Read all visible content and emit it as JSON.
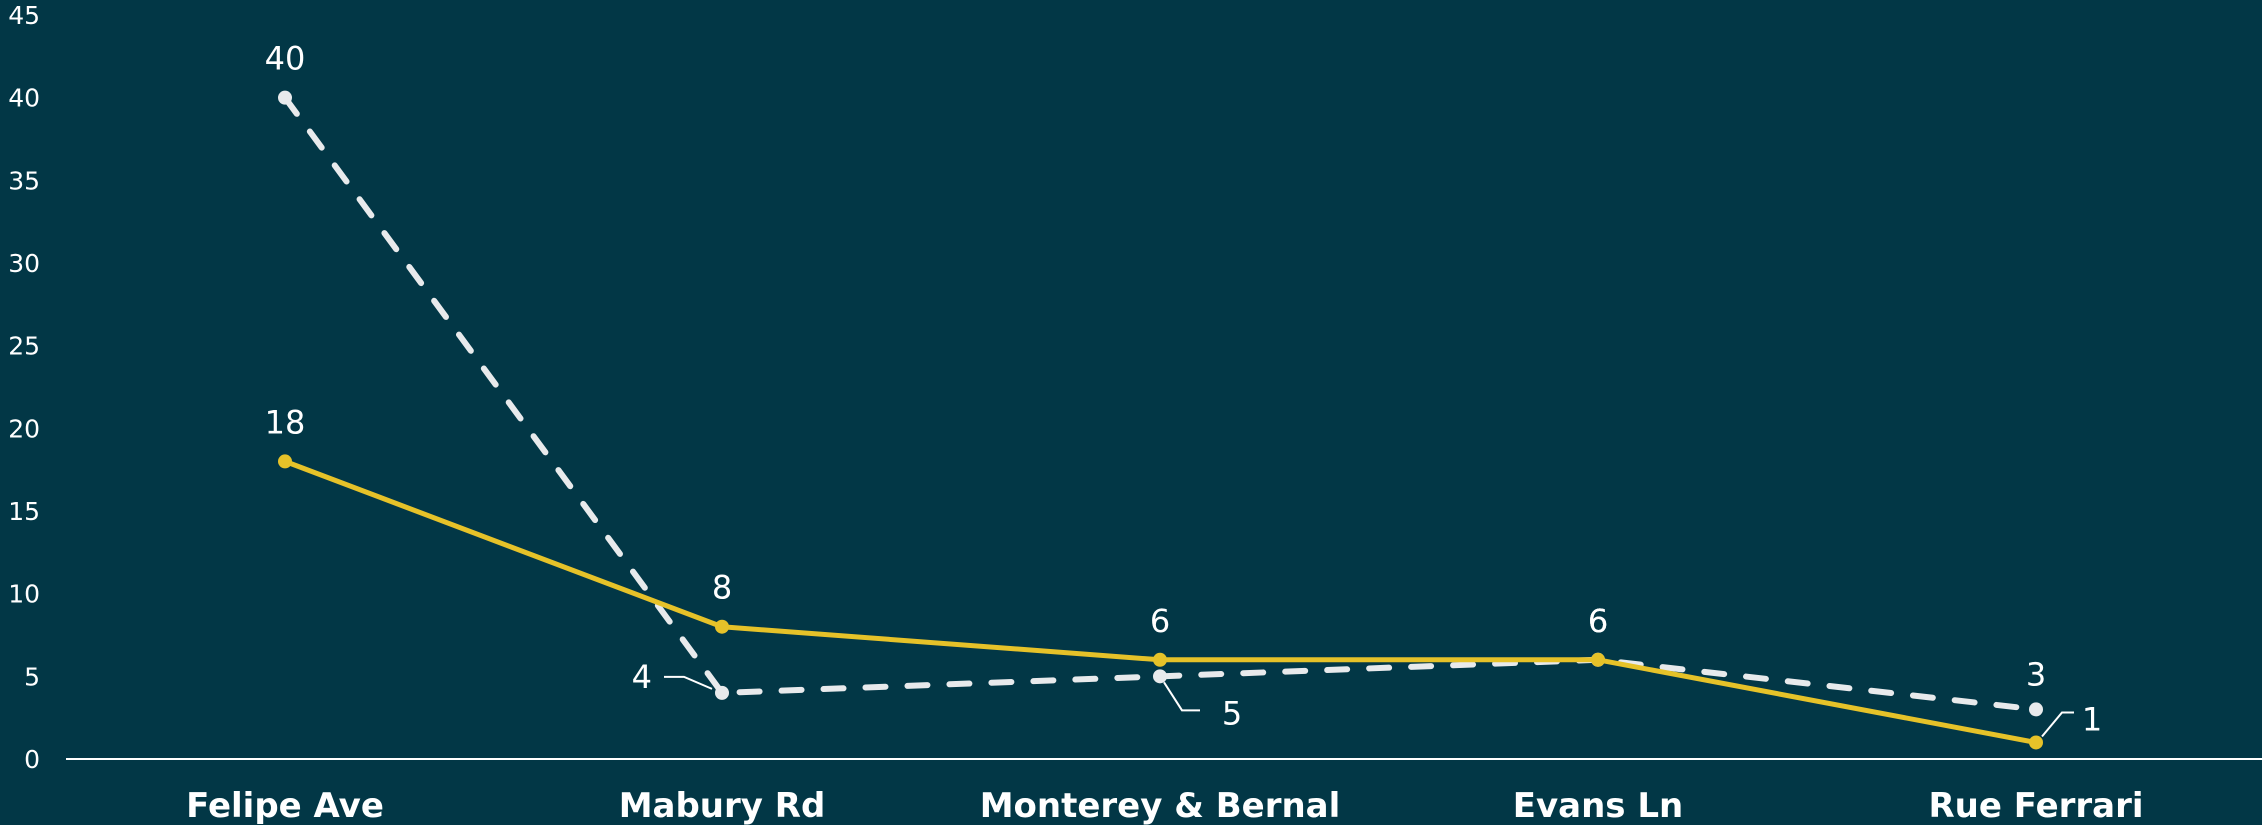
{
  "chart_data": {
    "type": "line",
    "categories": [
      "Felipe Ave",
      "Mabury Rd",
      "Monterey & Bernal",
      "Evans Ln",
      "Rue Ferrari"
    ],
    "series": [
      {
        "values": [
          40,
          4,
          5,
          6,
          3
        ],
        "color": "#e8eaec",
        "style": "dashed"
      },
      {
        "values": [
          18,
          8,
          6,
          6,
          1
        ],
        "color": "#e6c229",
        "style": "solid"
      }
    ],
    "yticks": [
      0,
      5,
      10,
      15,
      20,
      25,
      30,
      35,
      40,
      45
    ],
    "ylim": [
      0,
      45
    ],
    "title": "",
    "xlabel": "",
    "ylabel": "",
    "grid": false,
    "background": "#023746",
    "axis_color": "#ffffff"
  }
}
